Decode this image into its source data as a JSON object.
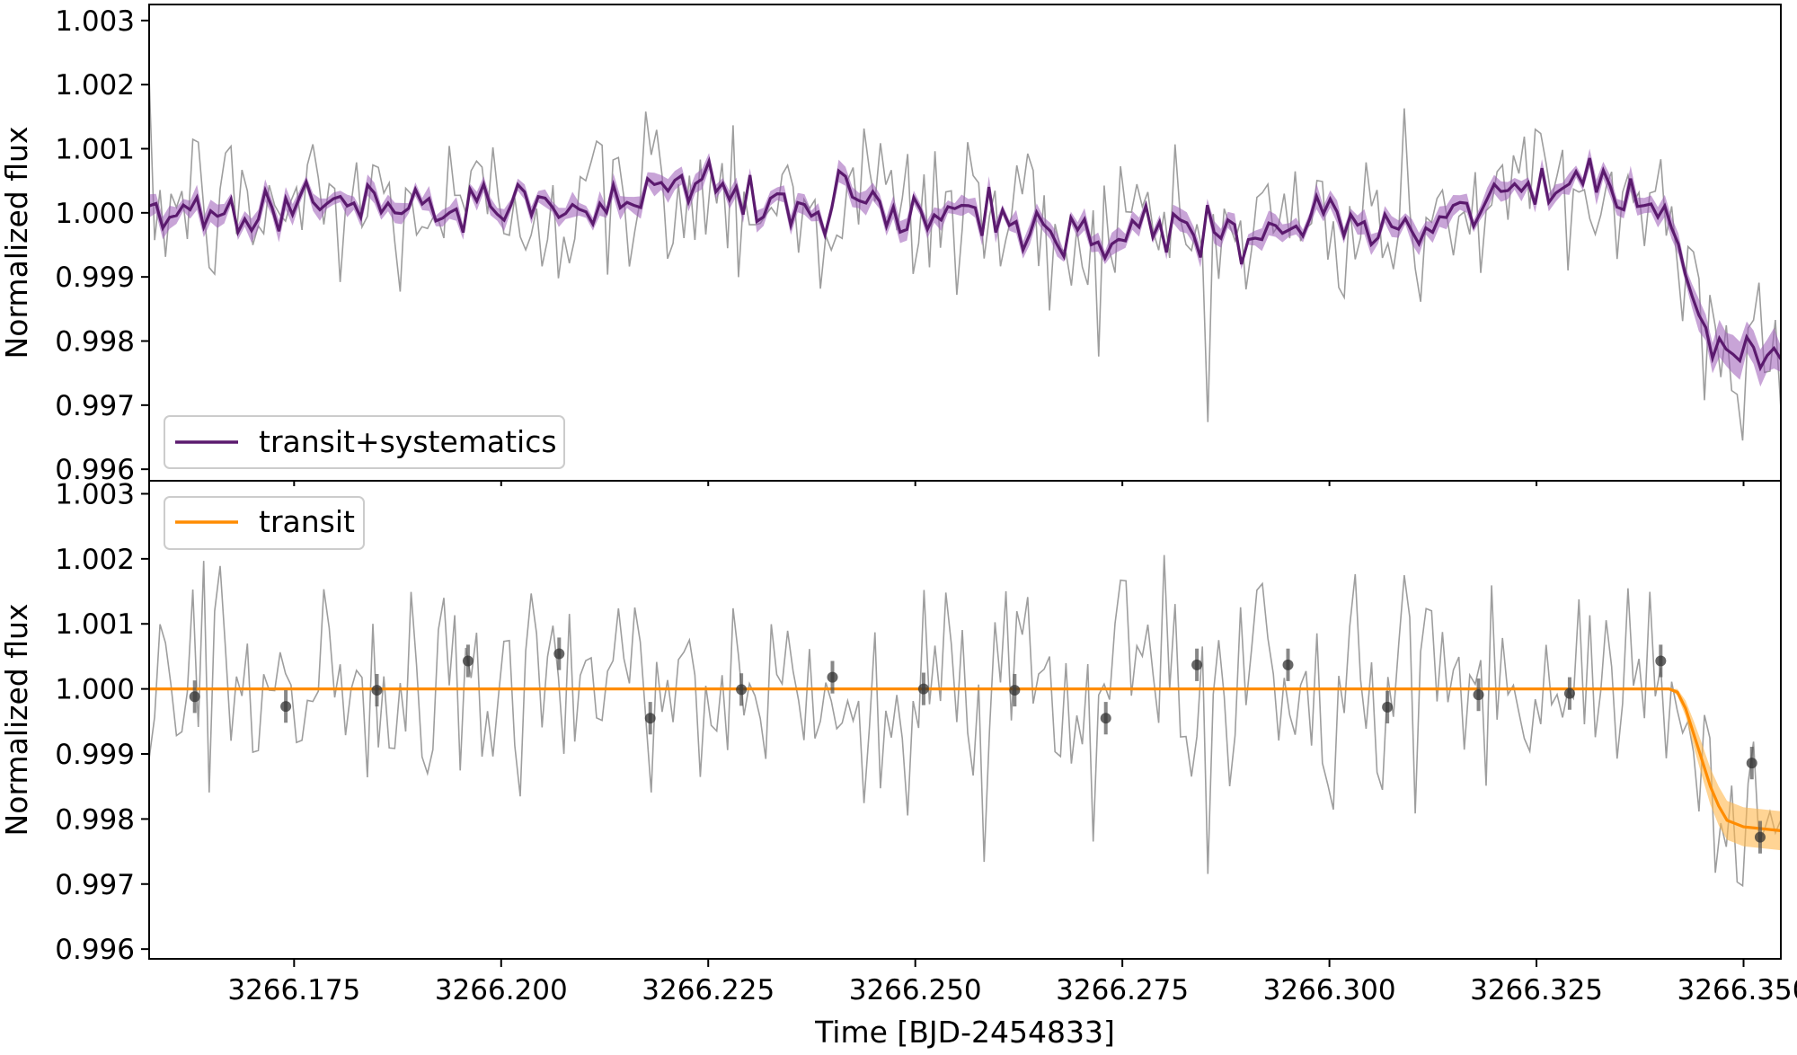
{
  "chart_data": [
    {
      "type": "line",
      "panel": "top",
      "xlabel": "",
      "ylabel": "Normalized flux",
      "xlim": [
        3266.1575,
        3266.3545
      ],
      "ylim": [
        0.99582,
        1.00325
      ],
      "yticks": [
        "1.003",
        "1.002",
        "1.001",
        "1.000",
        "0.999",
        "0.998",
        "0.997",
        "0.996"
      ],
      "ytick_values": [
        1.003,
        1.002,
        1.001,
        1.0,
        0.999,
        0.998,
        0.997,
        0.996
      ],
      "legend": {
        "location": "lower-left",
        "entries": [
          "transit+systematics"
        ]
      },
      "series": [
        {
          "name": "transit+systematics",
          "color": "#5b1a6e",
          "band_color": "#9b59b6",
          "x": [
            3266.158,
            3266.163,
            3266.168,
            3266.173,
            3266.178,
            3266.183,
            3266.188,
            3266.193,
            3266.198,
            3266.203,
            3266.208,
            3266.213,
            3266.218,
            3266.223,
            3266.228,
            3266.233,
            3266.238,
            3266.243,
            3266.248,
            3266.253,
            3266.258,
            3266.263,
            3266.268,
            3266.273,
            3266.278,
            3266.283,
            3266.288,
            3266.293,
            3266.298,
            3266.303,
            3266.308,
            3266.313,
            3266.318,
            3266.323,
            3266.328,
            3266.333,
            3266.338,
            3266.341,
            3266.344,
            3266.347,
            3266.35,
            3266.354
          ],
          "y": [
            1.0001,
            1.0002,
            0.9999,
            1.0001,
            1.0002,
            1.0001,
            1.0001,
            1.0,
            1.0,
            1.0003,
            1.0001,
            1.0,
            1.0004,
            1.0005,
            1.0004,
            1.0002,
            1.0,
            1.0004,
            1.0,
            1.0,
            1.0001,
            0.9998,
            0.9997,
            0.9996,
            0.9999,
            0.9997,
            0.9996,
            0.9998,
            0.9999,
            0.9996,
            1.0,
            0.9998,
            1.0001,
            1.0003,
            1.0002,
            1.0003,
            1.0002,
            1.0,
            0.9985,
            0.9981,
            0.998,
            0.9979
          ],
          "band": 0.00015
        }
      ]
    },
    {
      "type": "line",
      "panel": "bottom",
      "xlabel": "Time [BJD-2454833]",
      "ylabel": "Normalized flux",
      "xlim": [
        3266.1575,
        3266.3545
      ],
      "ylim": [
        0.99585,
        1.0032
      ],
      "xticks": [
        "3266.175",
        "3266.200",
        "3266.225",
        "3266.250",
        "3266.275",
        "3266.300",
        "3266.325",
        "3266.350"
      ],
      "xtick_values": [
        3266.175,
        3266.2,
        3266.225,
        3266.25,
        3266.275,
        3266.3,
        3266.325,
        3266.35
      ],
      "yticks": [
        "1.003",
        "1.002",
        "1.001",
        "1.000",
        "0.999",
        "0.998",
        "0.997",
        "0.996"
      ],
      "ytick_values": [
        1.003,
        1.002,
        1.001,
        1.0,
        0.999,
        0.998,
        0.997,
        0.996
      ],
      "legend": {
        "location": "upper-left",
        "entries": [
          "transit"
        ]
      },
      "series": [
        {
          "name": "transit",
          "color": "#ff8c00",
          "band_color": "#ffb74d",
          "x": [
            3266.1575,
            3266.341,
            3266.342,
            3266.343,
            3266.344,
            3266.345,
            3266.346,
            3266.347,
            3266.348,
            3266.35,
            3266.3545
          ],
          "y": [
            1.0,
            1.0,
            0.99995,
            0.9997,
            0.9993,
            0.9989,
            0.9985,
            0.9982,
            0.99798,
            0.99788,
            0.99782
          ],
          "band": [
            0,
            0,
            5e-05,
            0.00012,
            0.0002,
            0.00025,
            0.00028,
            0.0003,
            0.0003,
            0.0003,
            0.0003
          ]
        },
        {
          "name": "",
          "role": "binned points",
          "color": "#444444",
          "x": [
            3266.163,
            3266.174,
            3266.185,
            3266.196,
            3266.207,
            3266.218,
            3266.229,
            3266.24,
            3266.251,
            3266.262,
            3266.273,
            3266.284,
            3266.295,
            3266.307,
            3266.318,
            3266.329,
            3266.34,
            3266.351,
            3266.352
          ],
          "y": [
            0.99988,
            0.99973,
            0.99998,
            1.00043,
            1.00054,
            0.99955,
            0.99999,
            1.00018,
            1.0,
            0.99998,
            0.99955,
            1.00037,
            1.00037,
            0.99972,
            0.99991,
            0.99993,
            1.00043,
            0.99886,
            0.99772
          ],
          "err": [
            0.00025,
            0.00025,
            0.00025,
            0.00025,
            0.00025,
            0.00025,
            0.00025,
            0.00025,
            0.00025,
            0.00025,
            0.00025,
            0.00025,
            0.00025,
            0.00025,
            0.00025,
            0.00025,
            0.00025,
            0.00025,
            0.00025
          ]
        }
      ]
    }
  ]
}
